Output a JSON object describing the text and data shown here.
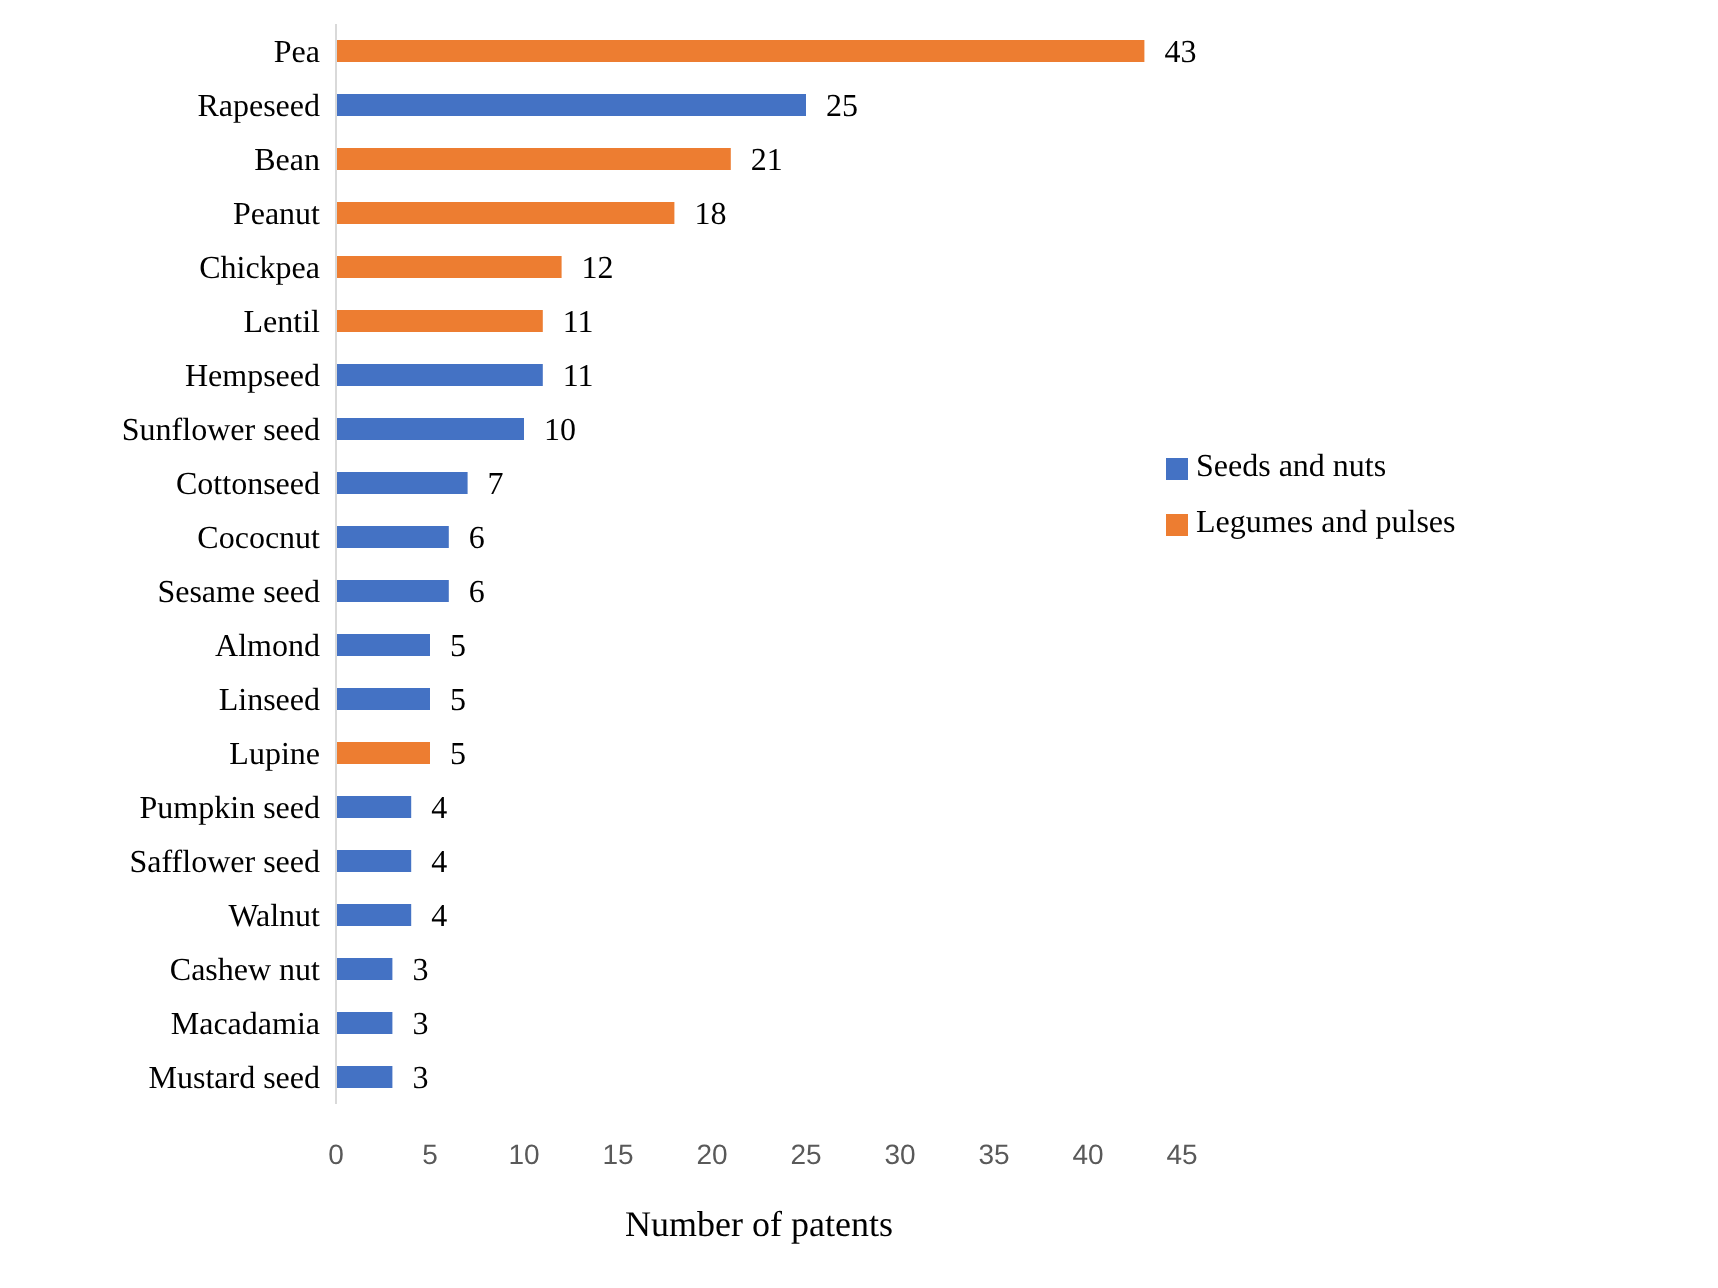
{
  "chart_data": {
    "type": "bar",
    "orientation": "horizontal",
    "stacked": true,
    "xlabel": "Number of patents",
    "categories": [
      "Pea",
      "Rapeseed",
      "Bean",
      "Peanut",
      "Chickpea",
      "Lentil",
      "Hempseed",
      "Sunflower seed",
      "Cottonseed",
      "Cococnut",
      "Sesame seed",
      "Almond",
      "Linseed",
      "Lupine",
      "Pumpkin seed",
      "Safflower seed",
      "Walnut",
      "Cashew nut",
      "Macadamia",
      "Mustard seed"
    ],
    "series": [
      {
        "name": "Seeds and nuts",
        "color": "#4472c4",
        "values": [
          null,
          25,
          null,
          null,
          null,
          null,
          11,
          10,
          7,
          6,
          6,
          5,
          5,
          null,
          4,
          4,
          4,
          3,
          3,
          3
        ]
      },
      {
        "name": "Legumes and pulses",
        "color": "#ed7d31",
        "values": [
          43,
          null,
          21,
          18,
          12,
          11,
          null,
          null,
          null,
          null,
          null,
          null,
          null,
          5,
          null,
          null,
          null,
          null,
          null,
          null
        ]
      }
    ],
    "xlim": [
      0,
      45
    ],
    "xticks": [
      0,
      5,
      10,
      15,
      20,
      25,
      30,
      35,
      40,
      45
    ],
    "data_labels": true,
    "grid": false,
    "legend": "right"
  }
}
